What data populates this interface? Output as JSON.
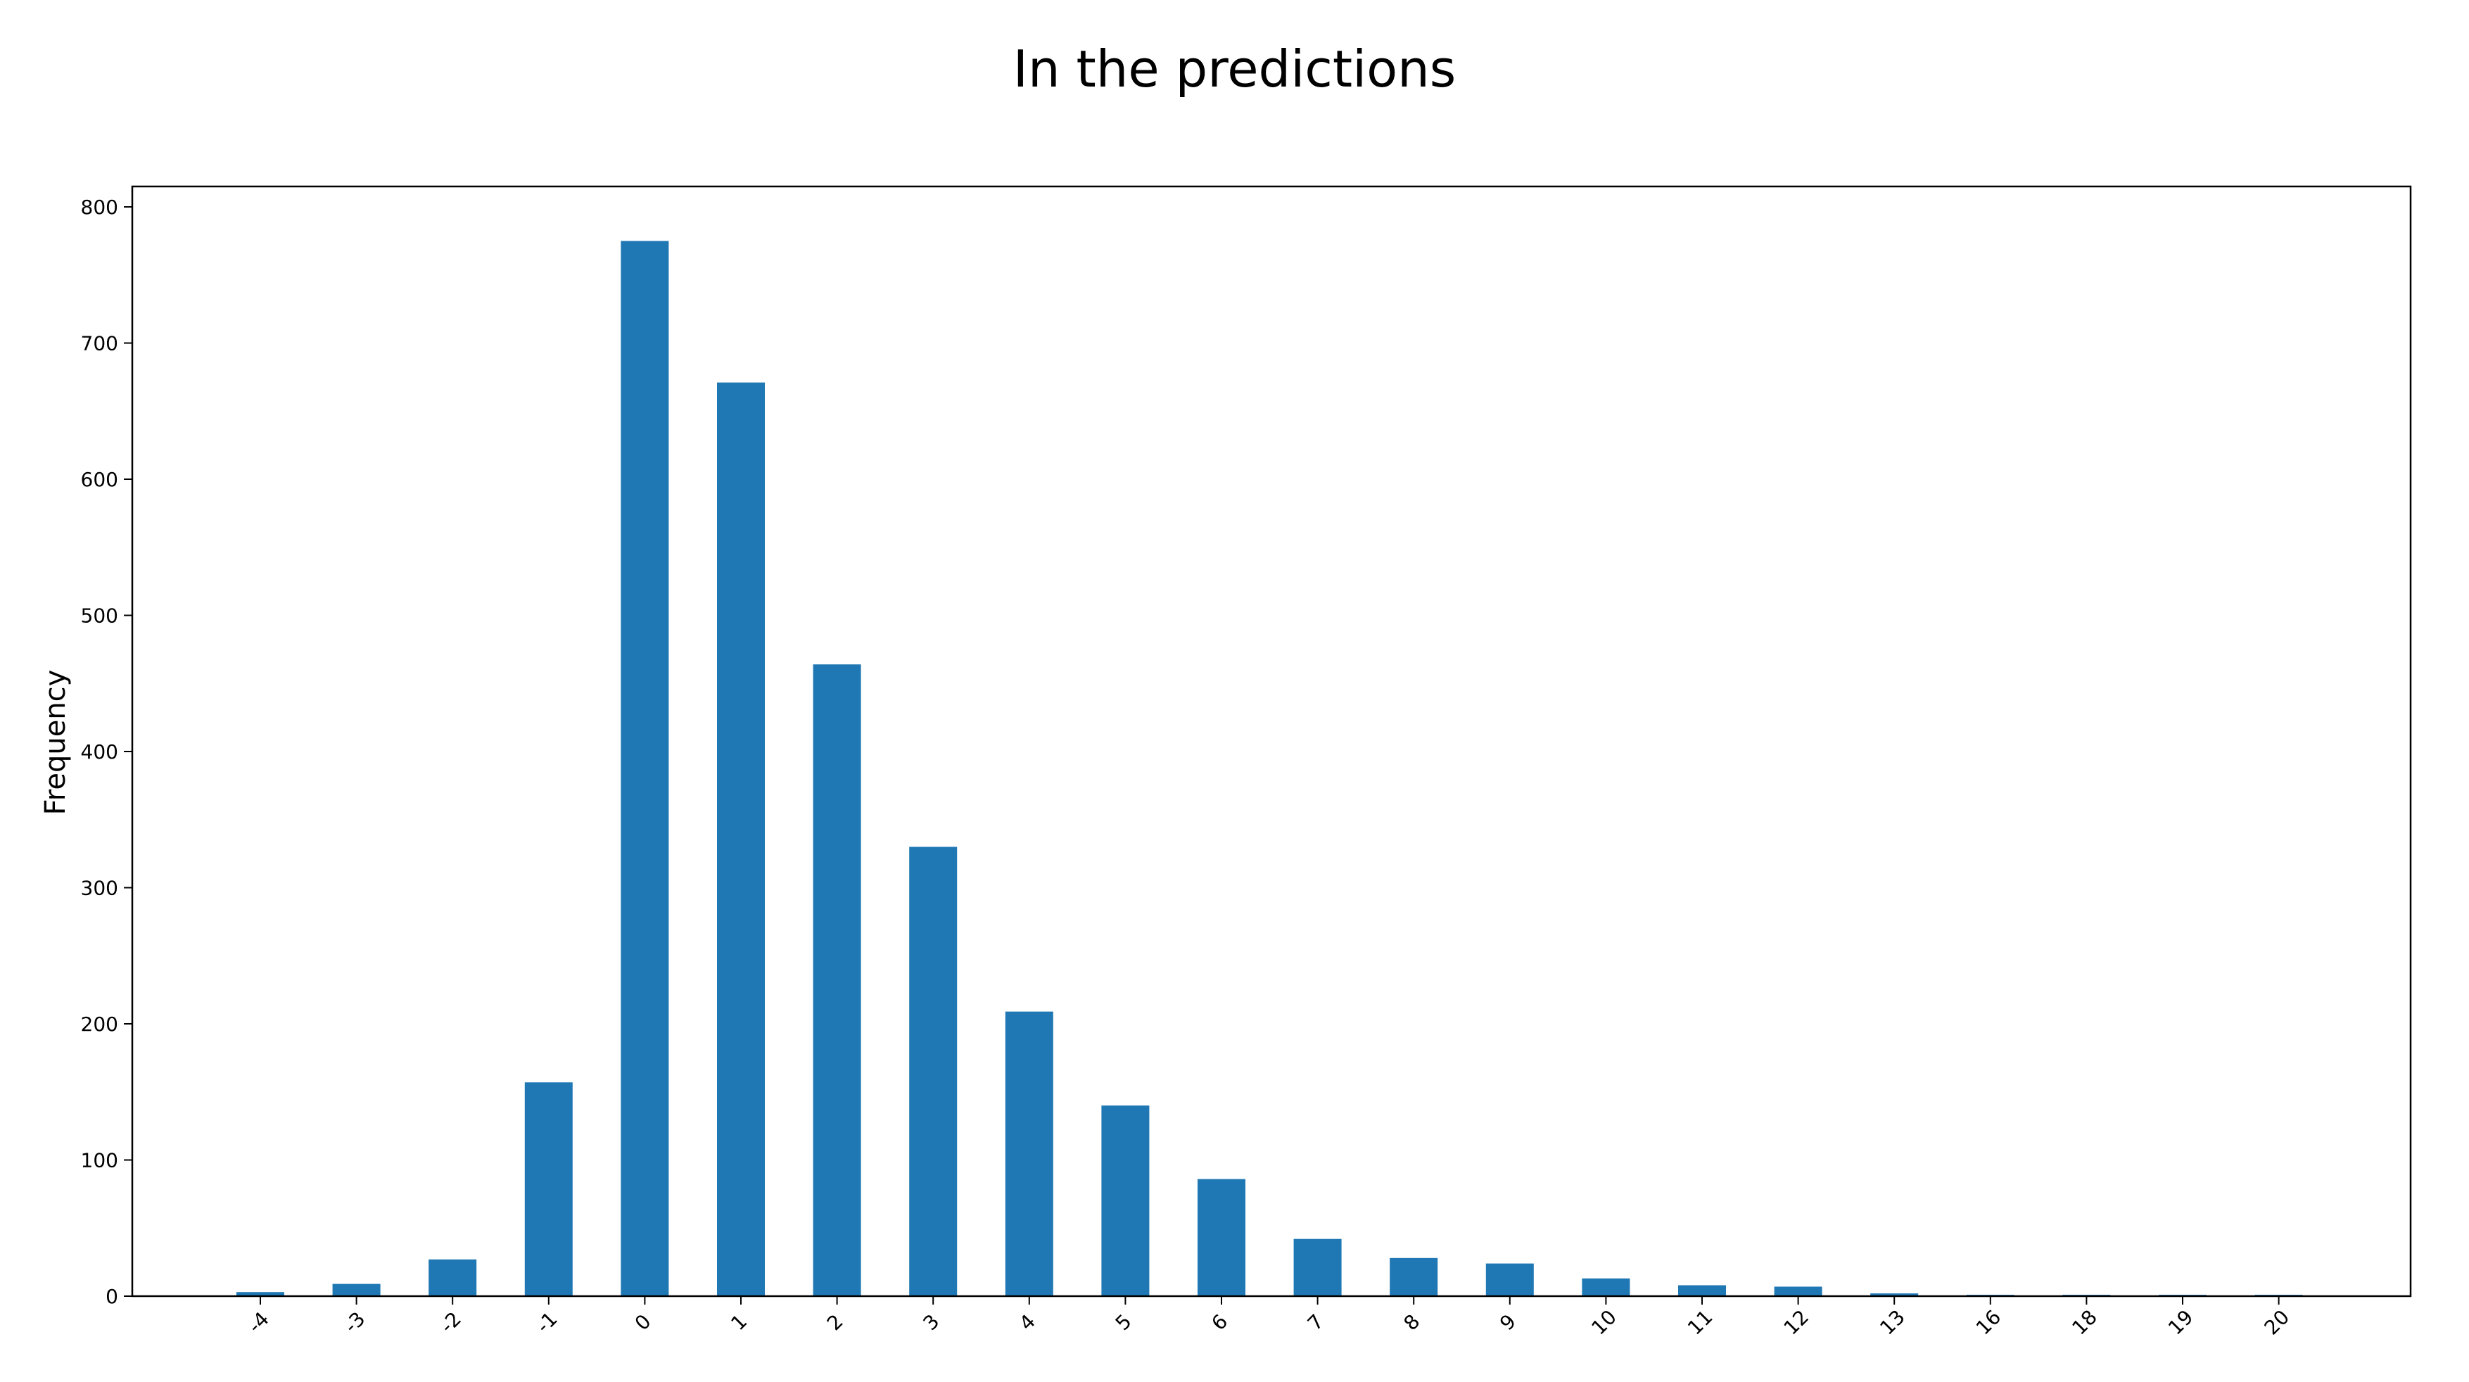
{
  "title": "In the predictions",
  "chart_data": {
    "type": "bar",
    "title": "In the predictions",
    "xlabel": "",
    "ylabel": "Frequency",
    "categories": [
      "-4",
      "-3",
      "-2",
      "-1",
      "0",
      "1",
      "2",
      "3",
      "4",
      "5",
      "6",
      "7",
      "8",
      "9",
      "10",
      "11",
      "12",
      "13",
      "16",
      "18",
      "19",
      "20"
    ],
    "values": [
      3,
      9,
      27,
      157,
      775,
      671,
      464,
      330,
      209,
      140,
      86,
      42,
      28,
      24,
      13,
      8,
      7,
      2,
      1,
      1,
      1,
      1
    ],
    "ylim": [
      0,
      815
    ],
    "yticks": [
      0,
      100,
      200,
      300,
      400,
      500,
      600,
      700,
      800
    ],
    "bar_color": "#1f77b4",
    "grid": false,
    "legend": "none"
  }
}
